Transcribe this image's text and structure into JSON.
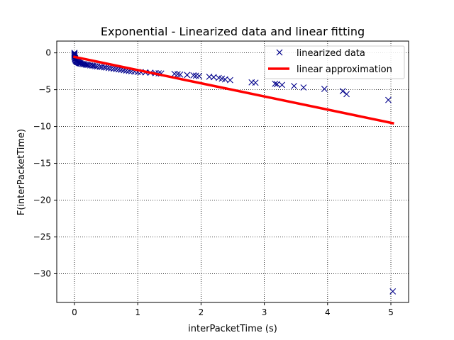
{
  "chart_data": {
    "type": "scatter",
    "title": "Exponential - Linearized data and linear fitting",
    "xlabel": "interPacketTime (s)",
    "ylabel": "F(interPacketTime)",
    "xlim": [
      -0.28,
      5.28
    ],
    "ylim": [
      -33.9,
      1.6
    ],
    "xticks": [
      0,
      1,
      2,
      3,
      4,
      5
    ],
    "yticks": [
      0,
      -5,
      -10,
      -15,
      -20,
      -25,
      -30
    ],
    "xtick_labels": [
      "0",
      "1",
      "2",
      "3",
      "4",
      "5"
    ],
    "ytick_labels": [
      "0",
      "−5",
      "−10",
      "−15",
      "−20",
      "−25",
      "−30"
    ],
    "grid": true,
    "legend_position": "top-right",
    "series": [
      {
        "name": "linearized data",
        "kind": "scatter",
        "marker": "x",
        "color": "#00008b",
        "x": [
          0.0,
          0.0,
          0.0,
          0.0,
          0.0,
          0.0,
          0.01,
          0.01,
          0.01,
          0.02,
          0.02,
          0.03,
          0.03,
          0.04,
          0.05,
          0.06,
          0.07,
          0.08,
          0.09,
          0.1,
          0.12,
          0.14,
          0.16,
          0.18,
          0.2,
          0.22,
          0.25,
          0.28,
          0.3,
          0.33,
          0.36,
          0.4,
          0.43,
          0.47,
          0.5,
          0.54,
          0.58,
          0.62,
          0.66,
          0.7,
          0.74,
          0.78,
          0.82,
          0.86,
          0.9,
          0.95,
          1.0,
          1.05,
          1.12,
          1.2,
          1.28,
          1.33,
          1.37,
          1.58,
          1.63,
          1.67,
          1.78,
          1.88,
          1.92,
          1.97,
          2.13,
          2.2,
          2.28,
          2.33,
          2.38,
          2.46,
          2.8,
          2.86,
          3.17,
          3.2,
          3.28,
          3.47,
          3.62,
          3.95,
          4.24,
          4.3,
          4.96,
          5.03
        ],
        "y": [
          0.0,
          -0.1,
          -0.2,
          -0.3,
          -0.45,
          -0.6,
          -0.7,
          -0.8,
          -0.9,
          -1.0,
          -1.05,
          -1.1,
          -1.15,
          -1.2,
          -1.25,
          -1.3,
          -1.35,
          -1.4,
          -1.42,
          -1.45,
          -1.5,
          -1.52,
          -1.55,
          -1.6,
          -1.62,
          -1.65,
          -1.7,
          -1.72,
          -1.75,
          -1.8,
          -1.85,
          -1.9,
          -1.93,
          -1.97,
          -2.0,
          -2.05,
          -2.1,
          -2.15,
          -2.2,
          -2.25,
          -2.3,
          -2.35,
          -2.4,
          -2.45,
          -2.5,
          -2.55,
          -2.6,
          -2.62,
          -2.65,
          -2.7,
          -2.75,
          -2.78,
          -2.8,
          -2.85,
          -2.9,
          -2.95,
          -3.0,
          -3.05,
          -3.1,
          -3.15,
          -3.25,
          -3.3,
          -3.4,
          -3.5,
          -3.6,
          -3.7,
          -4.0,
          -4.05,
          -4.2,
          -4.25,
          -4.35,
          -4.5,
          -4.7,
          -4.9,
          -5.2,
          -5.6,
          -6.4,
          -32.4
        ]
      },
      {
        "name": "linear approximation",
        "kind": "line",
        "color": "#ff0000",
        "x": [
          0.0,
          5.03
        ],
        "y": [
          -0.55,
          -9.55
        ]
      }
    ]
  }
}
